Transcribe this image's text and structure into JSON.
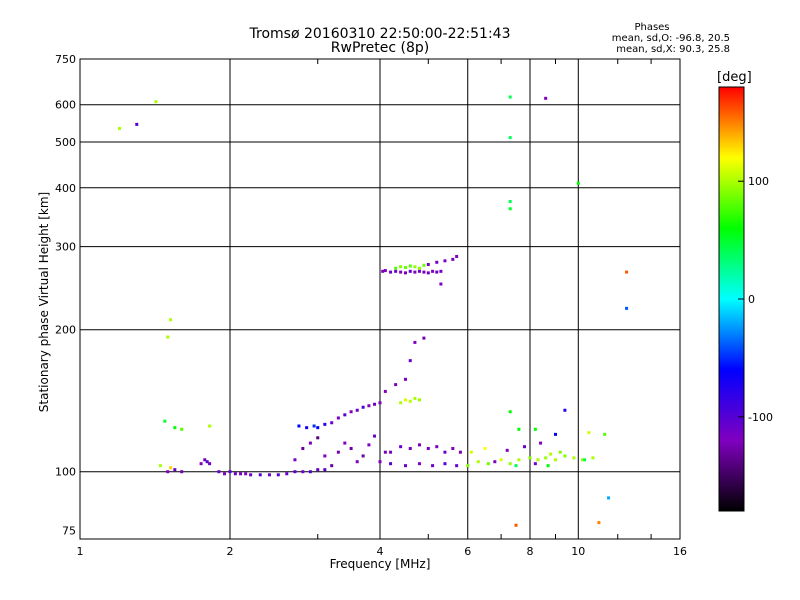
{
  "chart_data": {
    "type": "scatter",
    "title": "Tromsø 20160310 22:50:00-22:51:43",
    "subtitle": "RwPretec (8p)",
    "xlabel": "Frequency [MHz]",
    "ylabel": "Stationary phase Virtual Height [km]",
    "x_scale": "log",
    "y_scale": "log",
    "xlim": [
      1,
      16
    ],
    "ylim": [
      72,
      750
    ],
    "x_ticks": [
      1,
      2,
      4,
      6,
      8,
      10,
      16
    ],
    "y_ticks": [
      75,
      100,
      200,
      300,
      400,
      500,
      600,
      750
    ],
    "grid": true,
    "colorbar": {
      "label": "[deg]",
      "range": [
        -180,
        180
      ],
      "ticks": [
        100,
        0,
        -100
      ],
      "colormap": [
        "#000000",
        "#8000c0",
        "#0000ff",
        "#00ffff",
        "#00ff00",
        "#ffff00",
        "#ff0000"
      ]
    },
    "annotations": {
      "heading": "Phases",
      "line_o": "mean, sd,O: -96.8, 20.5",
      "line_x": "mean, sd,X: 90.3, 25.8"
    },
    "points": [
      [
        1.5,
        100,
        -120
      ],
      [
        1.55,
        101,
        -110
      ],
      [
        1.6,
        100,
        -125
      ],
      [
        1.52,
        102,
        130
      ],
      [
        1.45,
        103,
        100
      ],
      [
        1.75,
        104,
        -120
      ],
      [
        1.78,
        106,
        -115
      ],
      [
        1.8,
        105,
        -100
      ],
      [
        1.82,
        104,
        -110
      ],
      [
        1.9,
        100,
        -110
      ],
      [
        1.95,
        99,
        -120
      ],
      [
        2.0,
        100,
        -105
      ],
      [
        2.05,
        99,
        -110
      ],
      [
        2.1,
        99,
        -115
      ],
      [
        2.15,
        99,
        -120
      ],
      [
        2.2,
        98.5,
        -110
      ],
      [
        2.3,
        98.5,
        -100
      ],
      [
        2.4,
        98.5,
        -110
      ],
      [
        2.5,
        98.5,
        -100
      ],
      [
        2.6,
        99,
        -110
      ],
      [
        2.7,
        100,
        -105
      ],
      [
        2.8,
        100,
        -115
      ],
      [
        2.9,
        100,
        -100
      ],
      [
        3.0,
        101,
        -110
      ],
      [
        3.1,
        101,
        -100
      ],
      [
        2.7,
        106,
        -120
      ],
      [
        2.8,
        112,
        -130
      ],
      [
        2.9,
        115,
        -120
      ],
      [
        3.0,
        118,
        -140
      ],
      [
        3.1,
        108,
        -120
      ],
      [
        3.2,
        103,
        -130
      ],
      [
        3.3,
        110,
        -125
      ],
      [
        3.4,
        115,
        -120
      ],
      [
        3.5,
        112,
        -130
      ],
      [
        3.6,
        105,
        -120
      ],
      [
        3.7,
        108,
        -130
      ],
      [
        3.8,
        114,
        -120
      ],
      [
        3.9,
        119,
        -110
      ],
      [
        4.0,
        105,
        -120
      ],
      [
        4.1,
        110,
        -125
      ],
      [
        2.75,
        125,
        -60
      ],
      [
        2.85,
        124,
        -70
      ],
      [
        2.95,
        125,
        -50
      ],
      [
        3.0,
        124,
        -60
      ],
      [
        3.1,
        126,
        -80
      ],
      [
        3.2,
        127,
        -110
      ],
      [
        3.3,
        130,
        -120
      ],
      [
        3.4,
        132,
        -100
      ],
      [
        3.5,
        134,
        -120
      ],
      [
        3.6,
        135,
        -110
      ],
      [
        3.7,
        137,
        -100
      ],
      [
        3.8,
        138,
        -120
      ],
      [
        3.9,
        139,
        -110
      ],
      [
        4.0,
        140,
        -120
      ],
      [
        4.05,
        266,
        -120
      ],
      [
        4.1,
        267,
        -120
      ],
      [
        4.2,
        265,
        -115
      ],
      [
        4.3,
        266,
        -110
      ],
      [
        4.4,
        265,
        -120
      ],
      [
        4.5,
        264,
        -115
      ],
      [
        4.6,
        266,
        -110
      ],
      [
        4.7,
        265,
        -120
      ],
      [
        4.8,
        266,
        -115
      ],
      [
        4.9,
        265,
        -120
      ],
      [
        5.0,
        264,
        -115
      ],
      [
        5.1,
        266,
        -120
      ],
      [
        5.2,
        265,
        -110
      ],
      [
        5.3,
        266,
        -115
      ],
      [
        4.3,
        270,
        80
      ],
      [
        4.4,
        272,
        90
      ],
      [
        4.5,
        271,
        85
      ],
      [
        4.6,
        273,
        80
      ],
      [
        4.7,
        272,
        95
      ],
      [
        4.8,
        270,
        90
      ],
      [
        4.9,
        274,
        85
      ],
      [
        5.0,
        275,
        -120
      ],
      [
        5.2,
        278,
        -115
      ],
      [
        5.4,
        280,
        -120
      ],
      [
        5.6,
        282,
        -115
      ],
      [
        5.7,
        286,
        -120
      ],
      [
        5.3,
        250,
        -120
      ],
      [
        4.4,
        140,
        100
      ],
      [
        4.5,
        142,
        110
      ],
      [
        4.6,
        141,
        105
      ],
      [
        4.7,
        143,
        100
      ],
      [
        4.8,
        142,
        95
      ],
      [
        4.1,
        148,
        -120
      ],
      [
        4.3,
        153,
        -115
      ],
      [
        4.5,
        157,
        -120
      ],
      [
        4.6,
        172,
        -110
      ],
      [
        4.7,
        188,
        -120
      ],
      [
        4.9,
        192,
        -125
      ],
      [
        4.2,
        110,
        -120
      ],
      [
        4.4,
        113,
        -110
      ],
      [
        4.6,
        112,
        -120
      ],
      [
        4.8,
        114,
        -125
      ],
      [
        5.0,
        112,
        -115
      ],
      [
        5.2,
        113,
        -120
      ],
      [
        5.4,
        110,
        -110
      ],
      [
        5.6,
        112,
        -120
      ],
      [
        5.8,
        110,
        -125
      ],
      [
        4.2,
        104,
        -100
      ],
      [
        4.5,
        103,
        -110
      ],
      [
        4.8,
        104,
        -120
      ],
      [
        5.1,
        103,
        -110
      ],
      [
        5.4,
        104,
        -100
      ],
      [
        5.7,
        103,
        -110
      ],
      [
        6.0,
        103,
        90
      ],
      [
        6.3,
        105,
        100
      ],
      [
        6.6,
        104,
        85
      ],
      [
        7.0,
        106,
        110
      ],
      [
        7.3,
        104,
        95
      ],
      [
        7.6,
        106,
        100
      ],
      [
        8.0,
        107,
        90
      ],
      [
        8.3,
        106,
        100
      ],
      [
        8.6,
        107,
        95
      ],
      [
        9.0,
        106,
        100
      ],
      [
        9.4,
        108,
        90
      ],
      [
        9.8,
        107,
        100
      ],
      [
        10.2,
        106,
        95
      ],
      [
        10.7,
        107,
        100
      ],
      [
        6.1,
        110,
        110
      ],
      [
        6.5,
        112,
        120
      ],
      [
        7.2,
        111,
        -120
      ],
      [
        7.8,
        113,
        -110
      ],
      [
        8.4,
        115,
        -120
      ],
      [
        8.8,
        109,
        100
      ],
      [
        9.2,
        110,
        90
      ],
      [
        6.8,
        105,
        -120
      ],
      [
        7.5,
        103,
        40
      ],
      [
        8.2,
        104,
        -110
      ],
      [
        8.7,
        103,
        60
      ],
      [
        1.2,
        534,
        100
      ],
      [
        1.3,
        545,
        -100
      ],
      [
        1.42,
        609,
        100
      ],
      [
        1.52,
        210,
        100
      ],
      [
        1.5,
        193,
        100
      ],
      [
        1.48,
        128,
        50
      ],
      [
        1.55,
        124,
        60
      ],
      [
        1.6,
        123,
        80
      ],
      [
        1.82,
        125,
        100
      ],
      [
        7.3,
        623,
        40
      ],
      [
        7.3,
        511,
        40
      ],
      [
        8.6,
        619,
        -120
      ],
      [
        7.3,
        374,
        40
      ],
      [
        7.3,
        361,
        50
      ],
      [
        10.0,
        409,
        60
      ],
      [
        12.5,
        265,
        160
      ],
      [
        12.5,
        222,
        -40
      ],
      [
        11.5,
        88,
        -20
      ],
      [
        11.0,
        78,
        150
      ],
      [
        7.5,
        77,
        160
      ],
      [
        7.3,
        134,
        60
      ],
      [
        7.6,
        123,
        60
      ],
      [
        8.2,
        123,
        60
      ],
      [
        9.0,
        120,
        -60
      ],
      [
        9.4,
        135,
        -80
      ],
      [
        10.5,
        121,
        110
      ],
      [
        11.3,
        120,
        80
      ],
      [
        10.3,
        106,
        40
      ]
    ]
  }
}
